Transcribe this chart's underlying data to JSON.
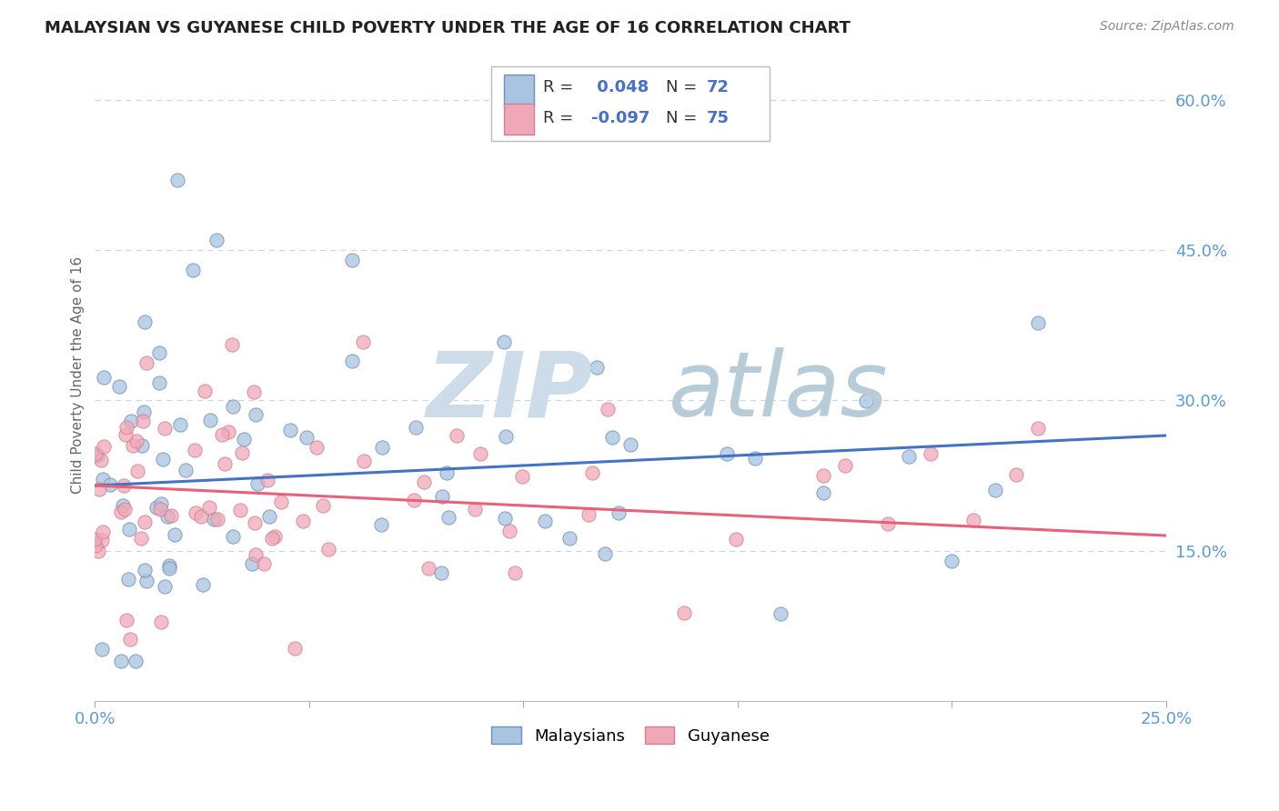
{
  "title": "MALAYSIAN VS GUYANESE CHILD POVERTY UNDER THE AGE OF 16 CORRELATION CHART",
  "source": "Source: ZipAtlas.com",
  "ylabel": "Child Poverty Under the Age of 16",
  "xlim": [
    0.0,
    0.25
  ],
  "ylim": [
    0.0,
    0.65
  ],
  "blue_scatter_color": "#a8c4e0",
  "pink_scatter_color": "#f0a8b8",
  "blue_line_color": "#4472c4",
  "pink_line_color": "#e8607a",
  "blue_legend_color": "#a8c4e0",
  "pink_legend_color": "#f0a8b8",
  "grid_color": "#c8d8e8",
  "axis_label_color": "#5b9bd5",
  "watermark_zip_color": "#ccdce8",
  "watermark_atlas_color": "#b8ccd8",
  "title_color": "#222222",
  "source_color": "#888888",
  "ylabel_color": "#666666",
  "blue_trend_y0": 0.215,
  "blue_trend_y1": 0.265,
  "pink_trend_y0": 0.215,
  "pink_trend_y1": 0.165,
  "legend_R1": "R =  0.048",
  "legend_N1": "N = 72",
  "legend_R2": "R = -0.097",
  "legend_N2": "N = 75",
  "bottom_legend_label1": "Malaysians",
  "bottom_legend_label2": "Guyanese"
}
